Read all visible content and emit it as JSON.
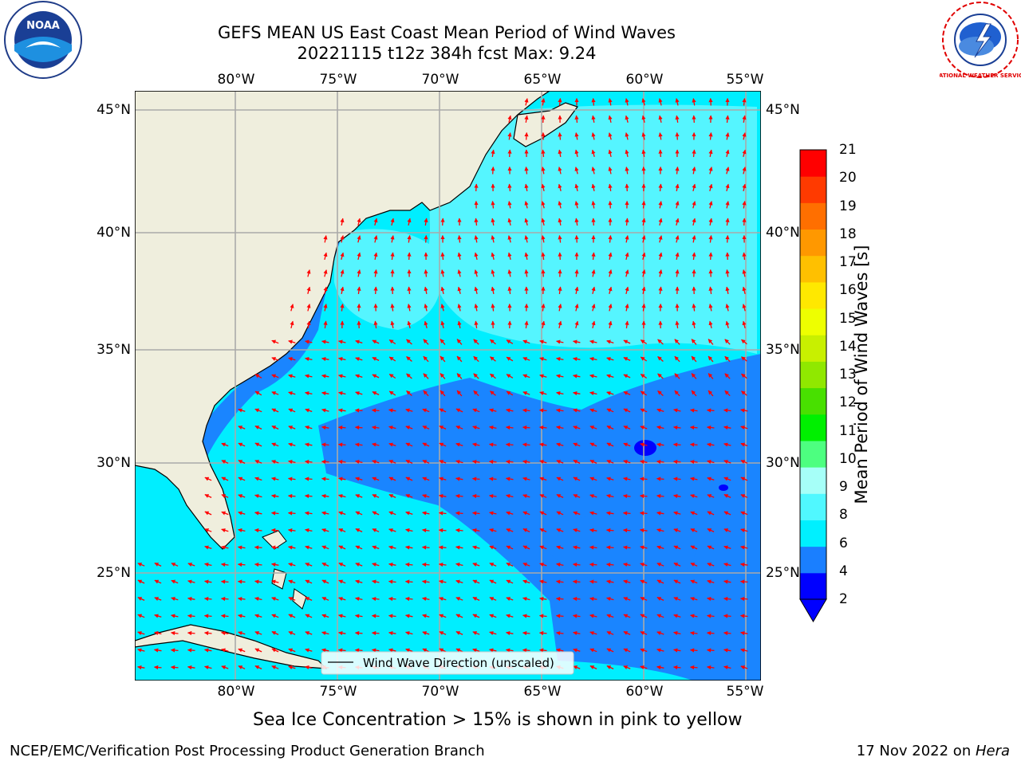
{
  "title_line1": "GEFS MEAN US East Coast Mean Period of Wind Waves",
  "title_line2": "20221115 t12z 384h fcst   Max: 9.24",
  "logos": {
    "left": "NOAA",
    "right": "NATIONAL WEATHER SERVICE"
  },
  "map": {
    "lon_labels": [
      "80°W",
      "75°W",
      "70°W",
      "65°W",
      "60°W",
      "55°W"
    ],
    "lat_labels": [
      "45°N",
      "40°N",
      "35°N",
      "30°N",
      "25°N"
    ],
    "legend_label": "Wind Wave Direction (unscaled)",
    "colors": {
      "land": "#efeedd",
      "water_2_4": "#1a85ff",
      "water_4_6": "#00eeff",
      "water_6_8": "#55f5ff",
      "arrow": "#ff0000"
    }
  },
  "colorbar": {
    "label": "Mean Period of Wind Waves [s]",
    "ticks": [
      "21",
      "20",
      "19",
      "18",
      "17",
      "16",
      "15",
      "14",
      "13",
      "12",
      "11",
      "10",
      "9",
      "8",
      "6",
      "4",
      "2"
    ],
    "colors": [
      "#0000ff",
      "#1a7fff",
      "#00f0ff",
      "#50f8ff",
      "#a6fff8",
      "#4dff80",
      "#00f000",
      "#48e000",
      "#90e800",
      "#c8f000",
      "#eeff00",
      "#ffe800",
      "#ffc000",
      "#ff9800",
      "#ff6f00",
      "#ff3a00",
      "#ff0000"
    ]
  },
  "footer": {
    "sea_ice_note": "Sea Ice Concentration > 15% is shown in pink to yellow",
    "credit": "NCEP/EMC/Verification Post Processing Product Generation Branch",
    "date": "17 Nov 2022 on ",
    "host": "Hera"
  }
}
